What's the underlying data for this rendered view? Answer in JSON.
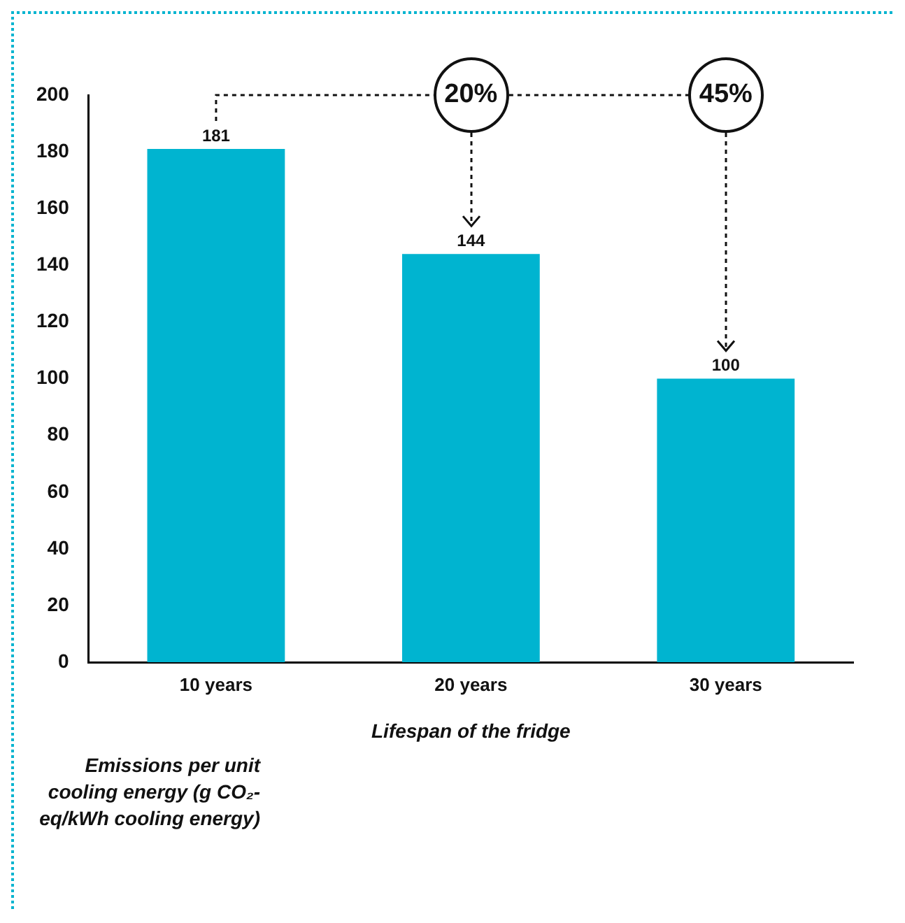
{
  "chart_data": {
    "type": "bar",
    "categories": [
      "10 years",
      "20 years",
      "30 years"
    ],
    "values": [
      181,
      144,
      100
    ],
    "color": "#00b4d0",
    "xlabel": "Lifespan of the fridge",
    "ylabel": "Emissions per unit cooling energy (g CO₂-eq/kWh cooling energy)",
    "ylim": [
      0,
      200
    ],
    "yticks": [
      0,
      20,
      40,
      60,
      80,
      100,
      120,
      140,
      160,
      180,
      200
    ],
    "grid": false,
    "legend": false,
    "data_labels": true,
    "annotations": [
      "20%",
      "45%"
    ]
  }
}
